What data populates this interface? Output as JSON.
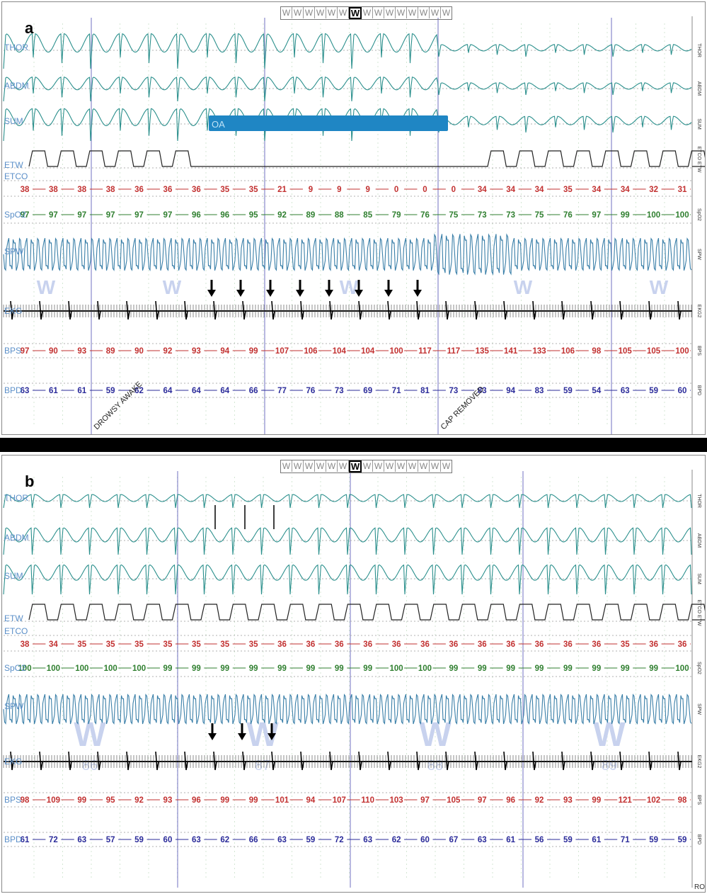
{
  "epoch_letters": [
    "W",
    "W",
    "W",
    "W",
    "W",
    "W",
    "W",
    "W",
    "W",
    "W",
    "W",
    "W",
    "W",
    "W",
    "W"
  ],
  "epoch_active_index": 6,
  "channel_labels": [
    "THOR",
    "ABDM",
    "SUM",
    "ETW",
    "ETCO",
    "SpO2",
    "SPW",
    "EKG",
    "BPS",
    "BPD"
  ],
  "right_labels": [
    "THOR",
    "ABDM",
    "SUM",
    "ETCO ETW",
    "SpO2",
    "SPW",
    "EKG2",
    "BPS",
    "BPD"
  ],
  "colors": {
    "resp": "#2a8f8c",
    "etco": "#c23030",
    "spo2": "#2f7f2f",
    "bpd": "#2b2b9a",
    "vline": "#8888cc",
    "label": "#5b8fc8",
    "ekg": "#111111",
    "spw": "#3a7fa8",
    "oa_bar": "#1f86c4"
  },
  "panel_a": {
    "letter": "a",
    "etco": [
      "38",
      "38",
      "38",
      "38",
      "36",
      "36",
      "36",
      "35",
      "35",
      "21",
      "9",
      "9",
      "9",
      "0",
      "0",
      "0",
      "34",
      "34",
      "34",
      "35",
      "34",
      "34",
      "32",
      "31"
    ],
    "spo2": [
      "97",
      "97",
      "97",
      "97",
      "97",
      "97",
      "96",
      "96",
      "95",
      "92",
      "89",
      "88",
      "85",
      "79",
      "76",
      "75",
      "73",
      "73",
      "75",
      "76",
      "97",
      "99",
      "100",
      "100"
    ],
    "bps": [
      "97",
      "90",
      "93",
      "89",
      "90",
      "92",
      "93",
      "94",
      "99",
      "107",
      "106",
      "104",
      "104",
      "100",
      "117",
      "117",
      "135",
      "141",
      "133",
      "106",
      "98",
      "105",
      "105",
      "100"
    ],
    "bpd": [
      "63",
      "61",
      "61",
      "59",
      "62",
      "64",
      "64",
      "64",
      "66",
      "77",
      "76",
      "73",
      "69",
      "71",
      "81",
      "73",
      "83",
      "94",
      "83",
      "59",
      "54",
      "63",
      "59",
      "60"
    ],
    "events": [
      "OA",
      "DROWSY AWAKE",
      "CAP REMOVED"
    ],
    "watermark": [
      "W",
      "W",
      "W",
      "W",
      "W"
    ]
  },
  "panel_b": {
    "letter": "b",
    "etco": [
      "38",
      "34",
      "35",
      "35",
      "35",
      "35",
      "35",
      "35",
      "35",
      "36",
      "36",
      "36",
      "36",
      "36",
      "36",
      "36",
      "36",
      "36",
      "36",
      "36",
      "36",
      "35",
      "36",
      "36"
    ],
    "spo2": [
      "100",
      "100",
      "100",
      "100",
      "100",
      "99",
      "99",
      "99",
      "99",
      "99",
      "99",
      "99",
      "99",
      "100",
      "100",
      "99",
      "99",
      "99",
      "99",
      "99",
      "99",
      "99",
      "99",
      "100"
    ],
    "bps": [
      "98",
      "109",
      "99",
      "95",
      "92",
      "93",
      "96",
      "99",
      "99",
      "101",
      "94",
      "107",
      "110",
      "103",
      "97",
      "105",
      "97",
      "96",
      "92",
      "93",
      "99",
      "121",
      "102",
      "98"
    ],
    "bpd": [
      "61",
      "72",
      "63",
      "57",
      "59",
      "60",
      "63",
      "62",
      "66",
      "63",
      "59",
      "72",
      "63",
      "62",
      "60",
      "67",
      "63",
      "61",
      "56",
      "59",
      "61",
      "71",
      "59",
      "59"
    ],
    "watermark": [
      "W",
      "W",
      "W",
      "W"
    ],
    "epoch_numbers": [
      "86",
      "87",
      "88",
      "89"
    ],
    "corner_mark": "RO"
  }
}
